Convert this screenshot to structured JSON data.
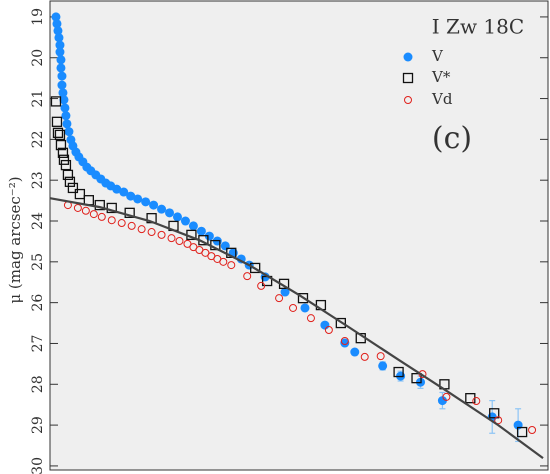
{
  "chart_data": {
    "type": "scatter",
    "title": "I Zw 18C",
    "annotation": "(c)",
    "y_label": "μ (mag arcsec⁻²)",
    "xlim": [
      0,
      100
    ],
    "ylim": [
      18.61,
      30.1
    ],
    "y_inverted": true,
    "yticks": [
      19,
      20,
      21,
      22,
      23,
      24,
      25,
      26,
      27,
      28,
      29,
      30
    ],
    "series": [
      {
        "name": "V",
        "color": "#1a8cff",
        "marker": "circle-filled",
        "x": [
          1.2,
          1.4,
          1.6,
          1.8,
          2.0,
          2.0,
          2.2,
          2.2,
          2.4,
          2.4,
          2.6,
          2.8,
          3.0,
          3.2,
          3.4,
          3.8,
          4.2,
          4.6,
          5.2,
          5.8,
          6.6,
          7.4,
          8.2,
          9.2,
          10.2,
          11.2,
          12.2,
          13.4,
          14.8,
          16.2,
          17.6,
          19.2,
          20.8,
          22.4,
          24,
          25.6,
          27.2,
          28.8,
          30.4,
          32,
          33.6,
          35.2,
          36.8,
          38.4,
          40,
          43.2,
          47.2,
          51.2,
          55.2,
          59.2,
          61.2,
          66.8,
          70.4,
          74.4,
          78.8,
          88.8,
          94
        ],
        "values": [
          19.0,
          19.17,
          19.34,
          19.51,
          19.69,
          19.86,
          20.05,
          20.25,
          20.45,
          20.67,
          20.86,
          21.03,
          21.23,
          21.42,
          21.62,
          21.81,
          22.01,
          22.16,
          22.31,
          22.43,
          22.55,
          22.68,
          22.77,
          22.87,
          22.97,
          23.07,
          23.14,
          23.22,
          23.29,
          23.39,
          23.46,
          23.53,
          23.61,
          23.71,
          23.8,
          23.9,
          24.0,
          24.12,
          24.25,
          24.37,
          24.49,
          24.61,
          24.78,
          24.93,
          25.08,
          25.37,
          25.74,
          26.13,
          26.55,
          26.99,
          27.21,
          27.55,
          27.8,
          27.95,
          28.4,
          28.8,
          29.0
        ],
        "errors": [
          null,
          null,
          null,
          null,
          null,
          null,
          null,
          null,
          null,
          null,
          null,
          null,
          null,
          null,
          null,
          null,
          null,
          null,
          null,
          null,
          null,
          null,
          null,
          null,
          null,
          null,
          null,
          null,
          null,
          null,
          null,
          null,
          null,
          null,
          null,
          null,
          null,
          null,
          null,
          null,
          null,
          null,
          null,
          null,
          null,
          null,
          null,
          null,
          null,
          null,
          null,
          0.1,
          0.12,
          0.15,
          0.2,
          0.4,
          0.4
        ],
        "error_color": "#8cc4f5"
      },
      {
        "name": "V*",
        "color": "#111111",
        "marker": "square",
        "x": [
          1.2,
          1.4,
          1.6,
          2,
          2.2,
          2.6,
          2.8,
          3.2,
          3.6,
          4,
          4.6,
          6,
          7.8,
          10,
          12.4,
          16,
          20.4,
          24.8,
          28.4,
          30.8,
          33.2,
          36.4,
          41.2,
          43.6,
          47,
          50.8,
          54.4,
          58.4,
          62.4,
          70,
          73.6,
          79.2,
          84.4,
          89.2,
          94.8
        ],
        "values": [
          21.07,
          21.57,
          21.84,
          21.89,
          22.14,
          22.33,
          22.5,
          22.63,
          22.87,
          23.04,
          23.19,
          23.34,
          23.49,
          23.61,
          23.68,
          23.8,
          23.93,
          24.12,
          24.34,
          24.47,
          24.59,
          24.78,
          25.15,
          25.47,
          25.54,
          25.89,
          26.06,
          26.5,
          26.87,
          27.7,
          27.85,
          28.0,
          28.34,
          28.71,
          29.17
        ]
      },
      {
        "name": "Vd",
        "color": "#e0201b",
        "marker": "circle-open",
        "x": [
          3.6,
          5.6,
          7.2,
          8.8,
          10.4,
          12.4,
          14.4,
          16.4,
          18.4,
          20.4,
          22.4,
          24.4,
          26,
          27.6,
          28.8,
          30,
          31.2,
          32.4,
          33.6,
          34.8,
          36.4,
          39.6,
          42.4,
          46,
          48.8,
          52.4,
          56,
          59.2,
          63.2,
          66.4,
          74.8,
          79.6,
          85.6,
          90,
          96.8
        ],
        "values": [
          23.61,
          23.68,
          23.75,
          23.83,
          23.9,
          23.98,
          24.05,
          24.12,
          24.2,
          24.27,
          24.34,
          24.42,
          24.49,
          24.56,
          24.64,
          24.71,
          24.78,
          24.86,
          24.93,
          25.0,
          25.08,
          25.35,
          25.59,
          25.89,
          26.13,
          26.38,
          26.67,
          26.94,
          27.33,
          27.31,
          27.75,
          28.31,
          28.41,
          28.88,
          29.12
        ]
      },
      {
        "color": "#444444",
        "marker": "line",
        "x": [
          0,
          10,
          20,
          30,
          40,
          50,
          60,
          70,
          80,
          90,
          99
        ],
        "values": [
          23.44,
          23.66,
          24.0,
          24.47,
          25.08,
          25.81,
          26.6,
          27.4,
          28.19,
          29.0,
          29.81
        ]
      }
    ]
  }
}
